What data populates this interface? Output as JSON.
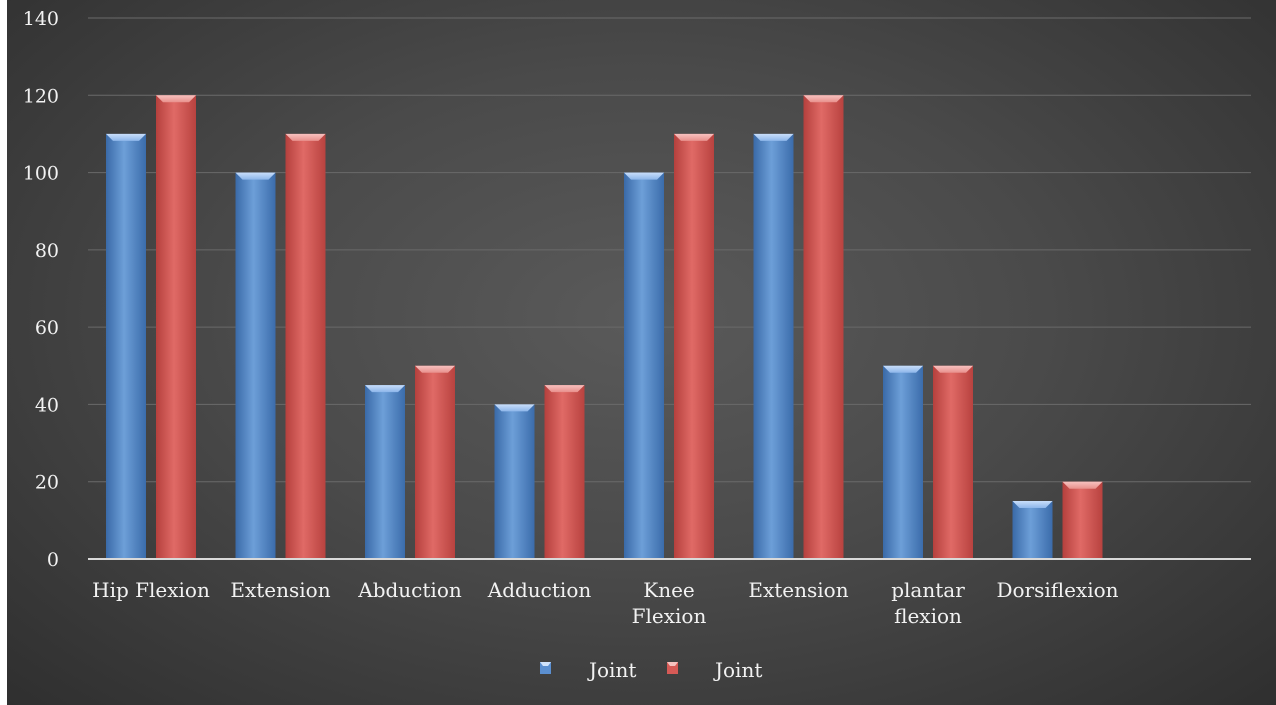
{
  "chart_data": {
    "type": "bar",
    "title": "",
    "xlabel": "",
    "ylabel": "",
    "categories": [
      [
        "Hip Flexion"
      ],
      [
        "Extension"
      ],
      [
        "Abduction"
      ],
      [
        "Adduction"
      ],
      [
        "Knee",
        "Flexion"
      ],
      [
        "Extension"
      ],
      [
        "plantar",
        "flexion"
      ],
      [
        "Dorsiflexion"
      ]
    ],
    "series": [
      {
        "name": "Joint",
        "color": "#4f81bd",
        "values": [
          110,
          100,
          45,
          40,
          100,
          110,
          50,
          15
        ]
      },
      {
        "name": "Joint",
        "color": "#c0504d",
        "values": [
          120,
          110,
          50,
          45,
          110,
          120,
          50,
          20
        ]
      }
    ],
    "ylim": [
      0,
      140
    ],
    "yticks": [
      0,
      20,
      40,
      60,
      80,
      100,
      120,
      140
    ],
    "grid": true,
    "legend_position": "bottom"
  }
}
